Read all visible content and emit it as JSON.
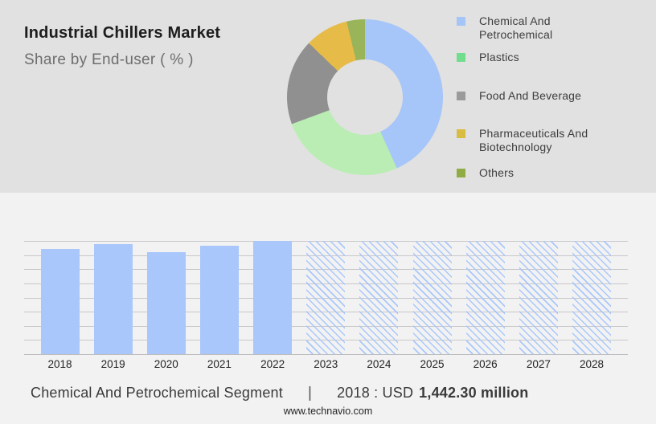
{
  "header": {
    "title": "Industrial Chillers Market",
    "subtitle": "Share by End-user ( % )"
  },
  "colors": {
    "top_background": "#e1e1e1",
    "bottom_background": "#f2f2f3",
    "bar_blue": "#a9c7fa",
    "gridline": "#c8c8ca"
  },
  "chart_data": [
    {
      "type": "pie",
      "title": "Industrial Chillers Market — Share by End-user ( % )",
      "legend_position": "right",
      "donut": true,
      "segments": [
        {
          "label": "Chemical And Petrochemical",
          "value_pct": 43.3,
          "slice_color": "#a6c5f9",
          "legend_color": "#a5c4f7"
        },
        {
          "label": "Plastics",
          "value_pct": 26.1,
          "slice_color": "#b9edb3",
          "legend_color": "#72dd8d"
        },
        {
          "label": "Food And Beverage",
          "value_pct": 17.8,
          "slice_color": "#909090",
          "legend_color": "#9b9b9b"
        },
        {
          "label": "Pharmaceuticals And Biotechnology",
          "value_pct": 9.0,
          "slice_color": "#e7bb48",
          "legend_color": "#d9bc42"
        },
        {
          "label": "Others",
          "value_pct": 3.8,
          "slice_color": "#9ab45a",
          "legend_color": "#8fad44"
        }
      ]
    },
    {
      "type": "bar",
      "categories": [
        "2018",
        "2019",
        "2020",
        "2021",
        "2022",
        "2023",
        "2024",
        "2025",
        "2026",
        "2027",
        "2028"
      ],
      "values": [
        1442.3,
        1508,
        1393,
        1487,
        1547,
        null,
        null,
        null,
        null,
        null,
        null
      ],
      "unit": "USD million",
      "ylim": [
        0,
        1550
      ],
      "grid": true,
      "gridline_count": 9,
      "bar_color": "#a9c7fa",
      "forecast_years_hatched": [
        "2023",
        "2024",
        "2025",
        "2026",
        "2027",
        "2028"
      ],
      "note": "2018 value labeled in footer as USD 1,442.30 million; 2019-2022 estimated from bar heights; forecast years drawn as full-height hatched bars"
    }
  ],
  "footer": {
    "segment_label": "Chemical And Petrochemical Segment",
    "separator": "|",
    "value_prefix": "2018 : USD",
    "value_bold": "1,442.30 million",
    "website": "www.technavio.com"
  }
}
